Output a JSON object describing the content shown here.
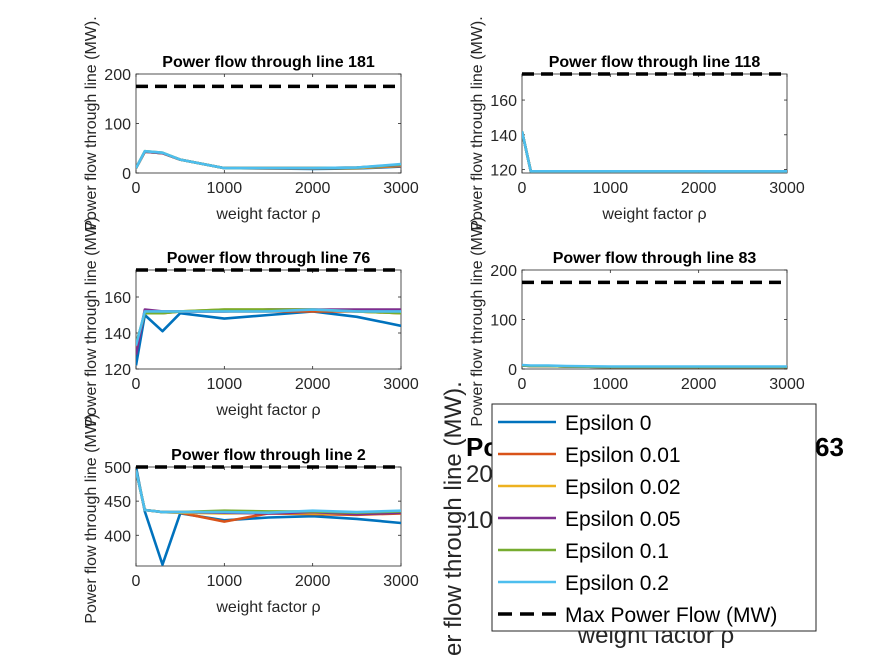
{
  "chart_data": [
    {
      "id": "p181",
      "type": "line",
      "title": "Power flow through line 181",
      "xlabel": "weight factor ρ",
      "ylabel": "Power flow through line (MW).",
      "xlim": [
        0,
        3000
      ],
      "ylim": [
        0,
        200
      ],
      "xticks": [
        0,
        1000,
        2000,
        3000
      ],
      "yticks": [
        0,
        100,
        200
      ],
      "max_flow": 175,
      "x": [
        0,
        100,
        300,
        500,
        1000,
        1500,
        2000,
        2500,
        3000
      ],
      "series": [
        {
          "name": "Epsilon 0",
          "values": [
            10,
            43,
            40,
            27,
            10,
            9,
            8,
            9,
            13
          ]
        },
        {
          "name": "Epsilon 0.01",
          "values": [
            10,
            43,
            40,
            27,
            10,
            9,
            9,
            10,
            14
          ]
        },
        {
          "name": "Epsilon 0.02",
          "values": [
            10,
            43,
            40,
            27,
            10,
            10,
            10,
            10,
            15
          ]
        },
        {
          "name": "Epsilon 0.05",
          "values": [
            10,
            43,
            40,
            27,
            10,
            10,
            10,
            11,
            16
          ]
        },
        {
          "name": "Epsilon 0.1",
          "values": [
            10,
            44,
            41,
            27,
            10,
            10,
            10,
            11,
            17
          ]
        },
        {
          "name": "Epsilon 0.2",
          "values": [
            10,
            44,
            41,
            27,
            10,
            10,
            10,
            11,
            18
          ]
        }
      ]
    },
    {
      "id": "p118",
      "type": "line",
      "title": "Power flow through line 118",
      "xlabel": "weight factor ρ",
      "ylabel": "Power flow through line (MW).",
      "xlim": [
        0,
        3000
      ],
      "ylim": [
        118,
        175
      ],
      "xticks": [
        0,
        1000,
        2000,
        3000
      ],
      "yticks": [
        120,
        140,
        160
      ],
      "max_flow": 175,
      "x": [
        0,
        100,
        300,
        500,
        1000,
        1500,
        2000,
        2500,
        3000
      ],
      "series": [
        {
          "name": "Epsilon 0",
          "values": [
            142,
            119,
            119,
            119,
            119,
            119,
            119,
            118,
            119
          ]
        },
        {
          "name": "Epsilon 0.01",
          "values": [
            142,
            119,
            119,
            119,
            119,
            119,
            119,
            119,
            119
          ]
        },
        {
          "name": "Epsilon 0.02",
          "values": [
            142,
            119,
            119,
            119,
            119,
            119,
            119,
            119,
            119
          ]
        },
        {
          "name": "Epsilon 0.05",
          "values": [
            142,
            119,
            119,
            119,
            119,
            119,
            119,
            119,
            119
          ]
        },
        {
          "name": "Epsilon 0.1",
          "values": [
            142,
            119,
            119,
            119,
            119,
            119,
            119,
            119,
            119
          ]
        },
        {
          "name": "Epsilon 0.2",
          "values": [
            142,
            119,
            119,
            119,
            119,
            119,
            119,
            119,
            119
          ]
        }
      ]
    },
    {
      "id": "p76",
      "type": "line",
      "title": "Power flow through line 76",
      "xlabel": "weight factor ρ",
      "ylabel": "Power flow through line (MW).",
      "xlim": [
        0,
        3000
      ],
      "ylim": [
        120,
        175
      ],
      "xticks": [
        0,
        1000,
        2000,
        3000
      ],
      "yticks": [
        120,
        140,
        160
      ],
      "max_flow": 175,
      "x": [
        0,
        100,
        300,
        500,
        1000,
        1500,
        2000,
        2500,
        3000
      ],
      "series": [
        {
          "name": "Epsilon 0",
          "values": [
            122,
            150,
            141,
            151,
            148,
            150,
            152,
            149,
            144
          ]
        },
        {
          "name": "Epsilon 0.01",
          "values": [
            130,
            152,
            151,
            152,
            152,
            152,
            152,
            152,
            151
          ]
        },
        {
          "name": "Epsilon 0.02",
          "values": [
            132,
            152,
            152,
            152,
            153,
            153,
            153,
            152,
            151
          ]
        },
        {
          "name": "Epsilon 0.05",
          "values": [
            128,
            153,
            152,
            152,
            152,
            153,
            153,
            153,
            153
          ]
        },
        {
          "name": "Epsilon 0.1",
          "values": [
            134,
            151,
            151,
            152,
            153,
            153,
            153,
            152,
            151
          ]
        },
        {
          "name": "Epsilon 0.2",
          "values": [
            133,
            152,
            152,
            152,
            152,
            152,
            153,
            152,
            152
          ]
        }
      ]
    },
    {
      "id": "p83",
      "type": "line",
      "title": "Power flow through line 83",
      "xlabel": "weight factor ρ",
      "ylabel": "Power flow through line (MW).",
      "xlim": [
        0,
        3000
      ],
      "ylim": [
        0,
        200
      ],
      "xticks": [
        0,
        1000,
        2000,
        3000
      ],
      "yticks": [
        0,
        100,
        200
      ],
      "max_flow": 175,
      "x": [
        0,
        100,
        300,
        500,
        1000,
        1500,
        2000,
        2500,
        3000
      ],
      "series": [
        {
          "name": "Epsilon 0",
          "values": [
            7,
            6,
            6,
            5,
            4,
            4,
            4,
            4,
            4
          ]
        },
        {
          "name": "Epsilon 0.01",
          "values": [
            7,
            6,
            6,
            5,
            4,
            4,
            4,
            4,
            4
          ]
        },
        {
          "name": "Epsilon 0.02",
          "values": [
            7,
            6,
            6,
            5,
            4,
            4,
            4,
            4,
            4
          ]
        },
        {
          "name": "Epsilon 0.05",
          "values": [
            7,
            6,
            6,
            5,
            4,
            4,
            4,
            4,
            4
          ]
        },
        {
          "name": "Epsilon 0.1",
          "values": [
            7,
            6,
            6,
            5,
            4,
            4,
            4,
            4,
            4
          ]
        },
        {
          "name": "Epsilon 0.2",
          "values": [
            8,
            7,
            7,
            6,
            5,
            5,
            5,
            5,
            5
          ]
        }
      ]
    },
    {
      "id": "p2",
      "type": "line",
      "title": "Power flow through line 2",
      "xlabel": "weight factor ρ",
      "ylabel": "Power flow through line (MW).",
      "xlim": [
        0,
        3000
      ],
      "ylim": [
        355,
        500
      ],
      "xticks": [
        0,
        1000,
        2000,
        3000
      ],
      "yticks": [
        400,
        450,
        500
      ],
      "max_flow": 500,
      "x": [
        0,
        100,
        300,
        500,
        1000,
        1500,
        2000,
        2500,
        3000
      ],
      "series": [
        {
          "name": "Epsilon 0",
          "values": [
            500,
            435,
            357,
            432,
            422,
            426,
            428,
            424,
            418
          ]
        },
        {
          "name": "Epsilon 0.01",
          "values": [
            495,
            437,
            434,
            433,
            420,
            432,
            431,
            430,
            432
          ]
        },
        {
          "name": "Epsilon 0.02",
          "values": [
            495,
            437,
            434,
            433,
            432,
            433,
            432,
            432,
            434
          ]
        },
        {
          "name": "Epsilon 0.05",
          "values": [
            495,
            437,
            434,
            434,
            433,
            432,
            434,
            431,
            433
          ]
        },
        {
          "name": "Epsilon 0.1",
          "values": [
            495,
            437,
            434,
            434,
            436,
            435,
            435,
            433,
            435
          ]
        },
        {
          "name": "Epsilon 0.2",
          "values": [
            495,
            437,
            434,
            434,
            434,
            433,
            436,
            434,
            436
          ]
        }
      ]
    }
  ],
  "colors": {
    "Epsilon 0": "#0072BD",
    "Epsilon 0.01": "#D95319",
    "Epsilon 0.02": "#EDB120",
    "Epsilon 0.05": "#7E2F8E",
    "Epsilon 0.1": "#77AC30",
    "Epsilon 0.2": "#4DBEEE",
    "max": "#000000"
  },
  "legend": {
    "items": [
      "Epsilon 0",
      "Epsilon 0.01",
      "Epsilon 0.02",
      "Epsilon 0.05",
      "Epsilon 0.1",
      "Epsilon 0.2",
      "Max Power Flow (MW)"
    ]
  },
  "occluded_plot": {
    "title_visible_start": "Po",
    "title_visible_end": "63",
    "tick_20": "20",
    "tick_10": "10",
    "ylabel_visible": "er flow through line (MW).",
    "xlabel": "weight factor ρ"
  }
}
